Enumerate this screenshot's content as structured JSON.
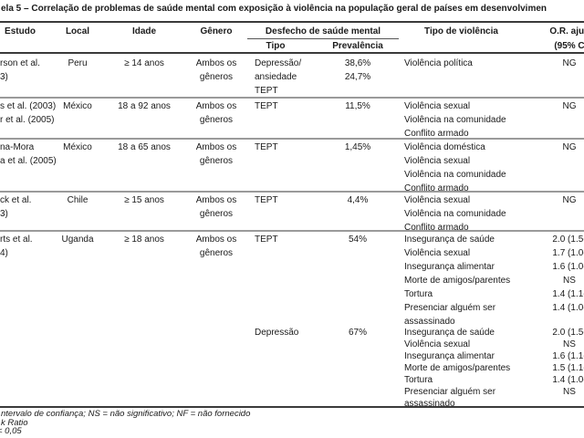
{
  "title": "ela 5 – Correlação de problemas de saúde mental com exposição à violência na população geral de países em desenvolvimen",
  "header": {
    "estudo": "Estudo",
    "local": "Local",
    "idade": "Idade",
    "genero": "Gênero",
    "desfecho_group": "Desfecho de saúde mental",
    "tipo": "Tipo",
    "prevalencia": "Prevalência",
    "tipo_violencia": "Tipo de violência",
    "or_line1": "O.R. ajus",
    "or_line2": "(95% C"
  },
  "rows": [
    {
      "estudo_lines": [
        "rson et al.",
        "3)"
      ],
      "local": "Peru",
      "idade": "≥ 14 anos",
      "genero_lines": [
        "Ambos os",
        "gêneros"
      ],
      "blocks": [
        {
          "tipo_lines": [
            "Depressão/",
            "ansiedade",
            "TEPT"
          ],
          "prev_lines": [
            "38,6%",
            "24,7%"
          ],
          "violencia": [
            "Violência política"
          ],
          "or": [
            "NG"
          ]
        }
      ]
    },
    {
      "estudo_lines": [
        "s et al. (2003)",
        "r et al. (2005)"
      ],
      "local": "México",
      "idade": "18 a 92 anos",
      "genero_lines": [
        "Ambos os",
        "gêneros"
      ],
      "blocks": [
        {
          "tipo_lines": [
            "TEPT"
          ],
          "prev_lines": [
            "11,5%"
          ],
          "violencia": [
            "Violência sexual",
            "Violência na comunidade",
            "Conflito armado"
          ],
          "or": [
            "NG"
          ]
        }
      ]
    },
    {
      "estudo_lines": [
        "na-Mora",
        "a et al. (2005)"
      ],
      "local": "México",
      "idade": "18 a 65 anos",
      "genero_lines": [
        "Ambos os",
        "gêneros"
      ],
      "blocks": [
        {
          "tipo_lines": [
            "TEPT"
          ],
          "prev_lines": [
            "1,45%"
          ],
          "violencia": [
            "Violência doméstica",
            "Violência sexual",
            "Violência na comunidade",
            "Conflito armado"
          ],
          "or": [
            "NG"
          ]
        }
      ]
    },
    {
      "estudo_lines": [
        "ck et al.",
        "3)"
      ],
      "local": "Chile",
      "idade": "≥ 15 anos",
      "genero_lines": [
        "Ambos os",
        "gêneros"
      ],
      "blocks": [
        {
          "tipo_lines": [
            "TEPT"
          ],
          "prev_lines": [
            "4,4%"
          ],
          "violencia": [
            "Violência sexual",
            "Violência na comunidade",
            "Conflito armado"
          ],
          "or": [
            "NG"
          ]
        }
      ]
    },
    {
      "estudo_lines": [
        "rts et al.",
        "4)"
      ],
      "local": "Uganda",
      "idade": "≥ 18 anos",
      "genero_lines": [
        "Ambos os",
        "gêneros"
      ],
      "blocks": [
        {
          "tipo_lines": [
            "TEPT"
          ],
          "prev_lines": [
            "54%"
          ],
          "violencia": [
            "Insegurança de saúde",
            "Violência sexual",
            "Insegurança alimentar",
            "Morte de amigos/parentes",
            "Tortura",
            "Presenciar alguém ser assassinado"
          ],
          "or": [
            "2.0 (1.5-",
            "1.7 (1.0-",
            "1.6 (1.0-",
            "NS",
            "1.4 (1.1-",
            "1.4 (1.0-"
          ]
        },
        {
          "tipo_lines": [
            "Depressão"
          ],
          "prev_lines": [
            "67%"
          ],
          "violencia": [
            "Insegurança de saúde",
            "Violência sexual",
            "Insegurança alimentar",
            "Morte de amigos/parentes",
            "Tortura",
            "Presenciar alguém ser assassinado"
          ],
          "or": [
            "2.0 (1.5-",
            "NS",
            "1.6 (1.1-",
            "1.5 (1.1-",
            "1.4 (1.0-",
            "NS"
          ]
        }
      ]
    }
  ],
  "footnotes": [
    "ntervalo de confiança; NS = não significativo; NF = não fornecido",
    "k Ratio",
    "< 0,05"
  ]
}
